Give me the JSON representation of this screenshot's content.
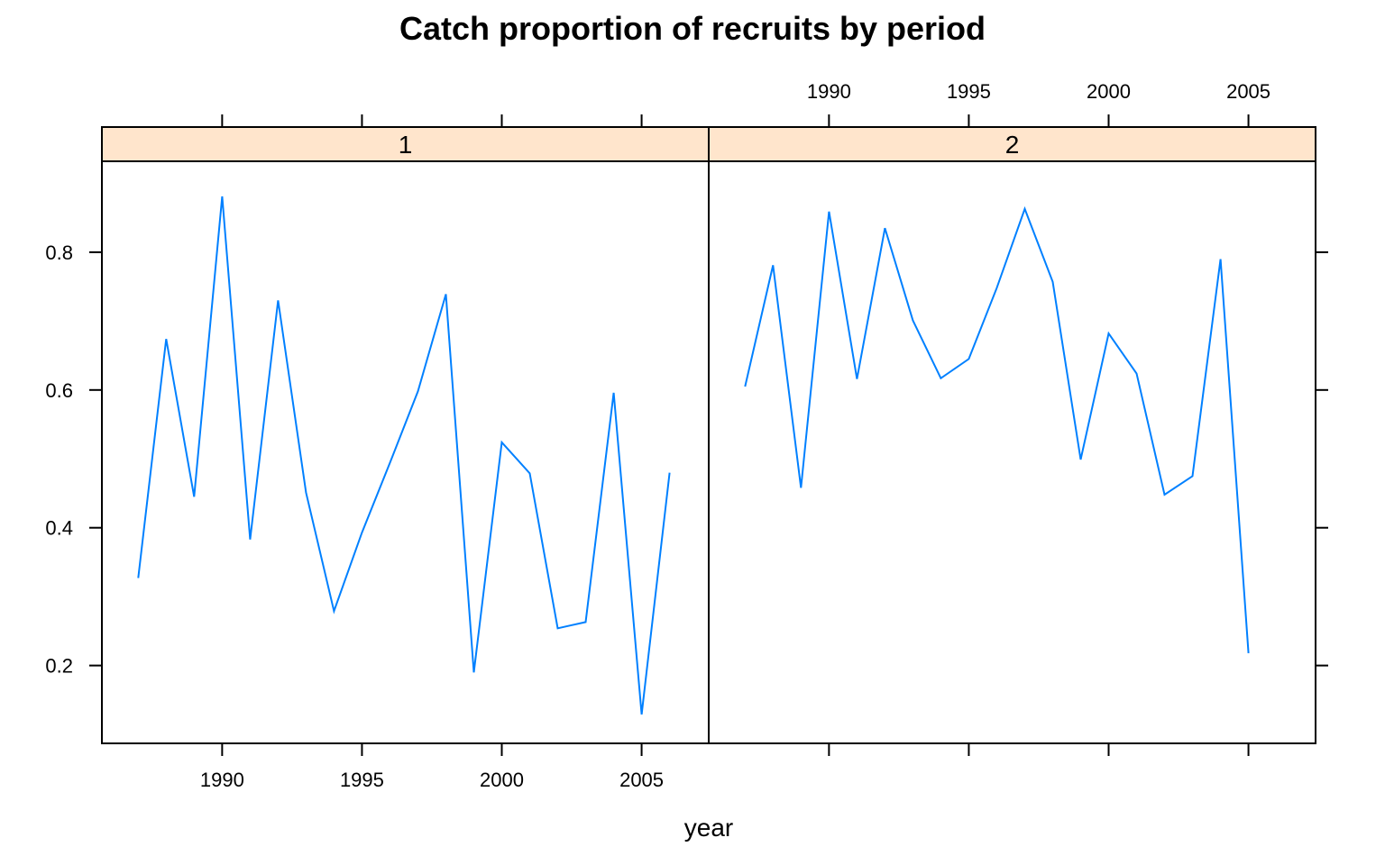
{
  "chart_data": {
    "type": "line",
    "title": "Catch proportion of recruits by period",
    "xlabel": "year",
    "ylabel": "",
    "layout": "two panels side by side sharing axes, lattice-style strips",
    "xlim": [
      1985.7,
      2007.4
    ],
    "ylim": [
      0.087,
      0.932
    ],
    "x_ticks": [
      1990,
      1995,
      2000,
      2005
    ],
    "y_ticks": [
      0.2,
      0.4,
      0.6,
      0.8
    ],
    "x_tick_labels": [
      "1990",
      "1995",
      "2000",
      "2005"
    ],
    "y_tick_labels": [
      "0.2",
      "0.4",
      "0.6",
      "0.8"
    ],
    "grid": false,
    "legend": "none",
    "colors": {
      "line": "#0080ff",
      "strip": "#ffe5cc",
      "frame": "#000000"
    },
    "panels": [
      {
        "strip_label": "1",
        "x": [
          1987,
          1988,
          1989,
          1990,
          1991,
          1992,
          1993,
          1994,
          1995,
          1996,
          1997,
          1998,
          1999,
          2000,
          2001,
          2002,
          2003,
          2004,
          2005,
          2006
        ],
        "y": [
          0.327,
          0.674,
          0.445,
          0.881,
          0.383,
          0.73,
          0.451,
          0.279,
          0.393,
          0.494,
          0.598,
          0.739,
          0.19,
          0.524,
          0.479,
          0.254,
          0.263,
          0.596,
          0.129,
          0.48
        ]
      },
      {
        "strip_label": "2",
        "x": [
          1987,
          1988,
          1989,
          1990,
          1991,
          1992,
          1993,
          1994,
          1995,
          1996,
          1997,
          1998,
          1999,
          2000,
          2001,
          2002,
          2003,
          2004,
          2005
        ],
        "y": [
          0.605,
          0.781,
          0.458,
          0.859,
          0.616,
          0.835,
          0.701,
          0.617,
          0.645,
          0.748,
          0.863,
          0.757,
          0.499,
          0.682,
          0.624,
          0.448,
          0.475,
          0.79,
          0.218
        ]
      }
    ]
  }
}
